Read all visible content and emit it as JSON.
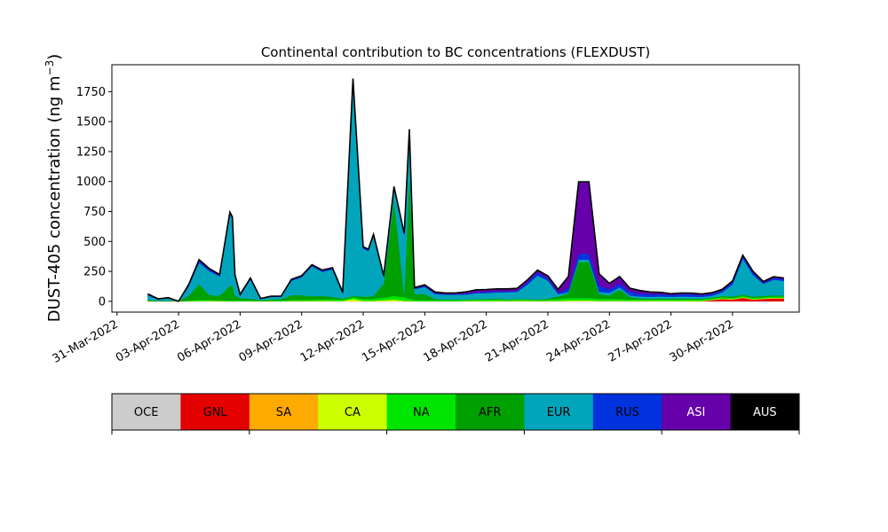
{
  "chart_data": {
    "type": "area",
    "stacked": true,
    "title": "Continental contribution to BC concentrations (FLEXDUST)",
    "xlabel": "",
    "ylabel_text": "DUST-405 concentration (ng m",
    "ylabel_sup": "−3",
    "ylabel_close": ")",
    "ylim": [
      -90,
      1975
    ],
    "xlim": [
      "2022-03-30T18:00",
      "2022-05-03T06:00"
    ],
    "x_ticks": [
      "31-Mar-2022",
      "03-Apr-2022",
      "06-Apr-2022",
      "09-Apr-2022",
      "12-Apr-2022",
      "15-Apr-2022",
      "18-Apr-2022",
      "21-Apr-2022",
      "24-Apr-2022",
      "27-Apr-2022",
      "30-Apr-2022"
    ],
    "y_ticks": [
      "0",
      "250",
      "500",
      "750",
      "1000",
      "1250",
      "1500",
      "1750"
    ],
    "grid": false,
    "total_line_color": "#000000",
    "x": [
      "2022-04-01T12:00",
      "2022-04-02T00:00",
      "2022-04-02T12:00",
      "2022-04-03T00:00",
      "2022-04-03T12:00",
      "2022-04-04T00:00",
      "2022-04-04T12:00",
      "2022-04-05T00:00",
      "2022-04-05T12:00",
      "2022-04-05T15:00",
      "2022-04-05T18:00",
      "2022-04-06T00:00",
      "2022-04-06T12:00",
      "2022-04-07T00:00",
      "2022-04-07T12:00",
      "2022-04-08T00:00",
      "2022-04-08T12:00",
      "2022-04-09T00:00",
      "2022-04-09T12:00",
      "2022-04-10T00:00",
      "2022-04-10T12:00",
      "2022-04-11T00:00",
      "2022-04-11T12:00",
      "2022-04-12T00:00",
      "2022-04-12T06:00",
      "2022-04-12T12:00",
      "2022-04-13T00:00",
      "2022-04-13T12:00",
      "2022-04-14T00:00",
      "2022-04-14T06:00",
      "2022-04-14T12:00",
      "2022-04-15T00:00",
      "2022-04-15T12:00",
      "2022-04-16T00:00",
      "2022-04-16T12:00",
      "2022-04-17T00:00",
      "2022-04-17T12:00",
      "2022-04-18T00:00",
      "2022-04-18T12:00",
      "2022-04-19T00:00",
      "2022-04-19T12:00",
      "2022-04-20T00:00",
      "2022-04-20T12:00",
      "2022-04-21T00:00",
      "2022-04-21T12:00",
      "2022-04-22T00:00",
      "2022-04-22T12:00",
      "2022-04-23T00:00",
      "2022-04-23T12:00",
      "2022-04-24T00:00",
      "2022-04-24T12:00",
      "2022-04-25T00:00",
      "2022-04-25T12:00",
      "2022-04-26T00:00",
      "2022-04-26T12:00",
      "2022-04-27T00:00",
      "2022-04-27T12:00",
      "2022-04-28T00:00",
      "2022-04-28T12:00",
      "2022-04-29T00:00",
      "2022-04-29T12:00",
      "2022-04-30T00:00",
      "2022-04-30T12:00",
      "2022-05-01T00:00",
      "2022-05-01T12:00",
      "2022-05-02T00:00",
      "2022-05-02T12:00"
    ],
    "series": [
      {
        "name": "OCE",
        "color": "#cccccc",
        "values": [
          0,
          0,
          0,
          0,
          0,
          0,
          0,
          0,
          0,
          0,
          0,
          0,
          0,
          0,
          0,
          0,
          0,
          0,
          0,
          0,
          0,
          0,
          0,
          0,
          0,
          0,
          0,
          0,
          0,
          0,
          0,
          0,
          0,
          0,
          0,
          0,
          0,
          0,
          0,
          0,
          0,
          0,
          0,
          0,
          0,
          0,
          0,
          0,
          0,
          0,
          0,
          0,
          0,
          0,
          0,
          0,
          0,
          0,
          0,
          0,
          0,
          0,
          0,
          0,
          0,
          0,
          0
        ]
      },
      {
        "name": "GNL",
        "color": "#e50000",
        "values": [
          0,
          0,
          0,
          0,
          0,
          0,
          0,
          0,
          0,
          0,
          0,
          0,
          0,
          0,
          0,
          0,
          0,
          0,
          0,
          0,
          0,
          0,
          0,
          0,
          0,
          0,
          0,
          0,
          0,
          0,
          0,
          0,
          0,
          0,
          0,
          0,
          0,
          0,
          0,
          0,
          0,
          0,
          0,
          0,
          0,
          0,
          0,
          0,
          0,
          0,
          0,
          0,
          0,
          0,
          0,
          0,
          0,
          0,
          0,
          10,
          20,
          15,
          30,
          15,
          20,
          25,
          25
        ]
      },
      {
        "name": "SA",
        "color": "#ffaa00",
        "values": [
          0,
          0,
          0,
          0,
          0,
          0,
          0,
          0,
          0,
          0,
          0,
          0,
          0,
          0,
          0,
          0,
          0,
          0,
          0,
          0,
          0,
          0,
          0,
          0,
          0,
          0,
          0,
          0,
          0,
          0,
          0,
          0,
          0,
          0,
          0,
          0,
          0,
          0,
          0,
          0,
          0,
          0,
          0,
          0,
          0,
          0,
          0,
          0,
          0,
          0,
          0,
          0,
          0,
          0,
          0,
          0,
          0,
          0,
          0,
          0,
          0,
          0,
          0,
          0,
          0,
          0,
          0
        ]
      },
      {
        "name": "CA",
        "color": "#ccff00",
        "values": [
          2,
          1,
          1,
          0,
          2,
          3,
          4,
          3,
          2,
          2,
          2,
          2,
          2,
          1,
          2,
          2,
          3,
          3,
          3,
          4,
          4,
          3,
          20,
          5,
          5,
          5,
          10,
          15,
          5,
          3,
          2,
          2,
          2,
          2,
          2,
          3,
          3,
          4,
          4,
          3,
          5,
          4,
          3,
          3,
          5,
          8,
          8,
          8,
          5,
          5,
          5,
          5,
          5,
          5,
          5,
          5,
          5,
          4,
          4,
          4,
          5,
          5,
          5,
          5,
          5,
          5,
          5
        ]
      },
      {
        "name": "NA",
        "color": "#00e500",
        "values": [
          2,
          1,
          1,
          0,
          5,
          10,
          8,
          5,
          5,
          5,
          5,
          5,
          5,
          3,
          5,
          5,
          8,
          8,
          10,
          12,
          12,
          10,
          15,
          15,
          15,
          15,
          20,
          30,
          30,
          20,
          10,
          8,
          8,
          8,
          8,
          8,
          10,
          10,
          10,
          8,
          10,
          10,
          8,
          10,
          15,
          20,
          20,
          20,
          15,
          15,
          12,
          10,
          10,
          10,
          10,
          10,
          10,
          10,
          10,
          10,
          10,
          10,
          10,
          10,
          10,
          10,
          10
        ]
      },
      {
        "name": "AFR",
        "color": "#00a000",
        "values": [
          8,
          4,
          4,
          0,
          40,
          130,
          40,
          40,
          120,
          130,
          40,
          20,
          15,
          5,
          10,
          10,
          40,
          40,
          30,
          30,
          20,
          10,
          10,
          20,
          20,
          25,
          120,
          800,
          20,
          1050,
          50,
          50,
          10,
          5,
          5,
          5,
          5,
          5,
          10,
          5,
          5,
          5,
          5,
          10,
          20,
          40,
          300,
          300,
          40,
          30,
          80,
          20,
          10,
          8,
          10,
          8,
          10,
          10,
          8,
          8,
          10,
          10,
          10,
          10,
          10,
          10,
          10
        ]
      },
      {
        "name": "EUR",
        "color": "#00a5bb",
        "values": [
          40,
          10,
          20,
          0,
          80,
          180,
          200,
          160,
          600,
          550,
          160,
          20,
          160,
          10,
          20,
          20,
          120,
          150,
          250,
          200,
          230,
          40,
          1800,
          400,
          380,
          500,
          50,
          100,
          500,
          350,
          40,
          60,
          40,
          40,
          40,
          40,
          50,
          50,
          50,
          60,
          60,
          120,
          200,
          150,
          20,
          10,
          20,
          20,
          20,
          20,
          20,
          15,
          15,
          15,
          15,
          15,
          15,
          15,
          15,
          15,
          30,
          100,
          300,
          180,
          100,
          130,
          120
        ]
      },
      {
        "name": "RUS",
        "color": "#0033dd",
        "values": [
          5,
          3,
          3,
          0,
          10,
          15,
          12,
          8,
          10,
          10,
          8,
          5,
          8,
          3,
          3,
          3,
          8,
          8,
          8,
          10,
          10,
          8,
          10,
          10,
          10,
          10,
          8,
          8,
          8,
          8,
          8,
          8,
          8,
          5,
          5,
          8,
          8,
          10,
          10,
          8,
          8,
          20,
          25,
          20,
          10,
          30,
          50,
          50,
          50,
          30,
          30,
          30,
          25,
          20,
          20,
          15,
          20,
          20,
          15,
          15,
          15,
          20,
          20,
          20,
          10,
          15,
          15
        ]
      },
      {
        "name": "ASI",
        "color": "#6600aa",
        "values": [
          5,
          2,
          2,
          0,
          5,
          10,
          10,
          8,
          8,
          8,
          8,
          5,
          5,
          2,
          3,
          3,
          5,
          5,
          5,
          5,
          5,
          5,
          5,
          5,
          5,
          5,
          5,
          5,
          5,
          5,
          5,
          10,
          10,
          10,
          10,
          15,
          20,
          20,
          20,
          20,
          20,
          20,
          20,
          20,
          30,
          100,
          600,
          600,
          100,
          50,
          60,
          30,
          25,
          20,
          15,
          10,
          10,
          10,
          10,
          10,
          10,
          10,
          10,
          10,
          10,
          10,
          10
        ]
      },
      {
        "name": "AUS",
        "color": "#000000",
        "values": [
          0,
          0,
          0,
          0,
          0,
          0,
          0,
          0,
          0,
          0,
          0,
          0,
          0,
          0,
          0,
          0,
          0,
          0,
          0,
          0,
          0,
          0,
          0,
          0,
          0,
          0,
          0,
          0,
          0,
          0,
          0,
          0,
          0,
          0,
          0,
          0,
          0,
          0,
          0,
          0,
          0,
          0,
          0,
          0,
          0,
          0,
          0,
          0,
          0,
          0,
          0,
          0,
          0,
          0,
          0,
          0,
          0,
          0,
          0,
          0,
          0,
          0,
          0,
          0,
          0,
          0,
          0
        ]
      }
    ]
  }
}
